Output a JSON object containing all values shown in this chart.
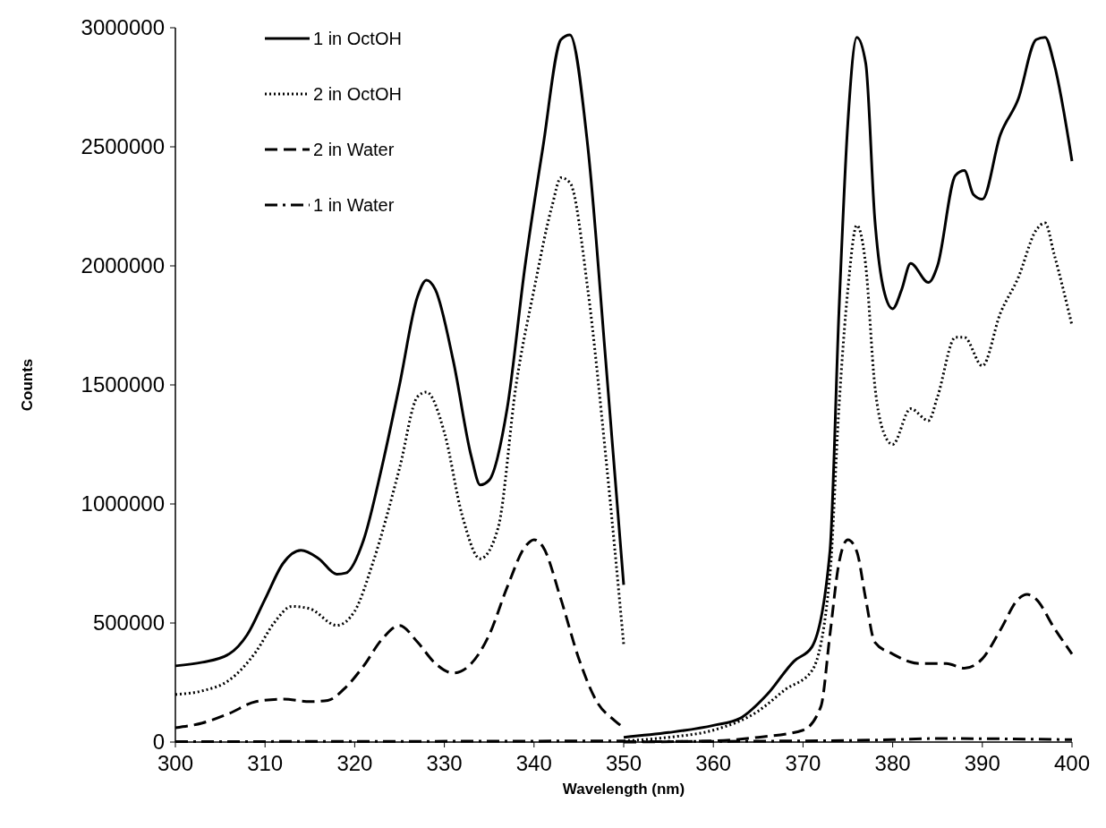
{
  "chart_data": {
    "type": "line",
    "xlabel": "Wavelength (nm)",
    "ylabel": "Counts",
    "xlim": [
      300,
      400
    ],
    "ylim": [
      0,
      3000000
    ],
    "xticks": [
      300,
      310,
      320,
      330,
      340,
      350,
      360,
      370,
      380,
      390,
      400
    ],
    "yticks": [
      0,
      500000,
      1000000,
      1500000,
      2000000,
      2500000,
      3000000
    ],
    "grid": false,
    "legend": "top left",
    "series": [
      {
        "name": "1 in OctOH",
        "color": "#000000",
        "line_style": "solid",
        "x": [
          300,
          303,
          306,
          308,
          310,
          312,
          314,
          316,
          318,
          319,
          321,
          323,
          325,
          327,
          328,
          329,
          331,
          333,
          334,
          335,
          337,
          339,
          341,
          343,
          344,
          346,
          348,
          350,
          null,
          350,
          355,
          360,
          363,
          366,
          369,
          371,
          373,
          374,
          375,
          376,
          377,
          378,
          379,
          380,
          381,
          382,
          384,
          385,
          387,
          388,
          389,
          390,
          392,
          394,
          396,
          397,
          398,
          400
        ],
        "values": [
          320000,
          335000,
          370000,
          450000,
          600000,
          750000,
          805000,
          770000,
          705000,
          710000,
          850000,
          1150000,
          1500000,
          1870000,
          1940000,
          1900000,
          1600000,
          1200000,
          1080000,
          1100000,
          1400000,
          2000000,
          2500000,
          2950000,
          2970000,
          2500000,
          1600000,
          660000,
          null,
          20000,
          40000,
          70000,
          100000,
          200000,
          340000,
          400000,
          800000,
          1800000,
          2600000,
          2960000,
          2850000,
          2200000,
          1900000,
          1820000,
          1900000,
          2010000,
          1930000,
          2000000,
          2380000,
          2400000,
          2300000,
          2280000,
          2550000,
          2700000,
          2950000,
          2960000,
          2850000,
          2440000
        ]
      },
      {
        "name": "2 in OctOH",
        "color": "#000000",
        "line_style": "dotted",
        "x": [
          300,
          303,
          306,
          309,
          311,
          313,
          315,
          318,
          320,
          322,
          325,
          327,
          328,
          330,
          332,
          334,
          336,
          338,
          340,
          342,
          343,
          344,
          346,
          348,
          350,
          null,
          350,
          355,
          360,
          365,
          368,
          371,
          373,
          374,
          375,
          376,
          377,
          378,
          379,
          380,
          382,
          384,
          385,
          387,
          388,
          390,
          392,
          394,
          396,
          397,
          398,
          400
        ],
        "values": [
          200000,
          215000,
          260000,
          380000,
          500000,
          570000,
          560000,
          490000,
          550000,
          750000,
          1150000,
          1450000,
          1470000,
          1300000,
          950000,
          770000,
          900000,
          1500000,
          1900000,
          2250000,
          2370000,
          2350000,
          1900000,
          1200000,
          410000,
          null,
          5000,
          20000,
          50000,
          130000,
          220000,
          300000,
          700000,
          1400000,
          1900000,
          2170000,
          2000000,
          1500000,
          1300000,
          1250000,
          1400000,
          1350000,
          1450000,
          1700000,
          1700000,
          1580000,
          1800000,
          1950000,
          2150000,
          2180000,
          2050000,
          1750000
        ]
      },
      {
        "name": "2 in Water",
        "color": "#000000",
        "line_style": "dashed",
        "x": [
          300,
          303,
          306,
          309,
          312,
          315,
          317,
          319,
          321,
          323,
          325,
          327,
          329,
          331,
          333,
          335,
          337,
          339,
          340,
          341,
          343,
          345,
          347,
          349,
          350,
          null,
          350,
          360,
          365,
          370,
          372,
          373,
          374,
          375,
          376,
          377,
          378,
          380,
          383,
          386,
          388,
          390,
          392,
          394,
          395,
          396,
          398,
          400
        ],
        "values": [
          60000,
          80000,
          120000,
          170000,
          180000,
          170000,
          175000,
          230000,
          320000,
          430000,
          490000,
          420000,
          330000,
          290000,
          330000,
          450000,
          650000,
          820000,
          850000,
          820000,
          600000,
          350000,
          170000,
          90000,
          60000,
          null,
          0,
          5000,
          20000,
          50000,
          150000,
          450000,
          750000,
          850000,
          800000,
          600000,
          420000,
          370000,
          330000,
          330000,
          310000,
          350000,
          470000,
          600000,
          620000,
          600000,
          480000,
          370000
        ]
      },
      {
        "name": "1 in Water",
        "color": "#000000",
        "line_style": "dashdot",
        "x": [
          300,
          325,
          350,
          null,
          350,
          370,
          380,
          385,
          400
        ],
        "values": [
          2000,
          3000,
          5000,
          null,
          2000,
          5000,
          10000,
          15000,
          10000
        ]
      }
    ]
  }
}
